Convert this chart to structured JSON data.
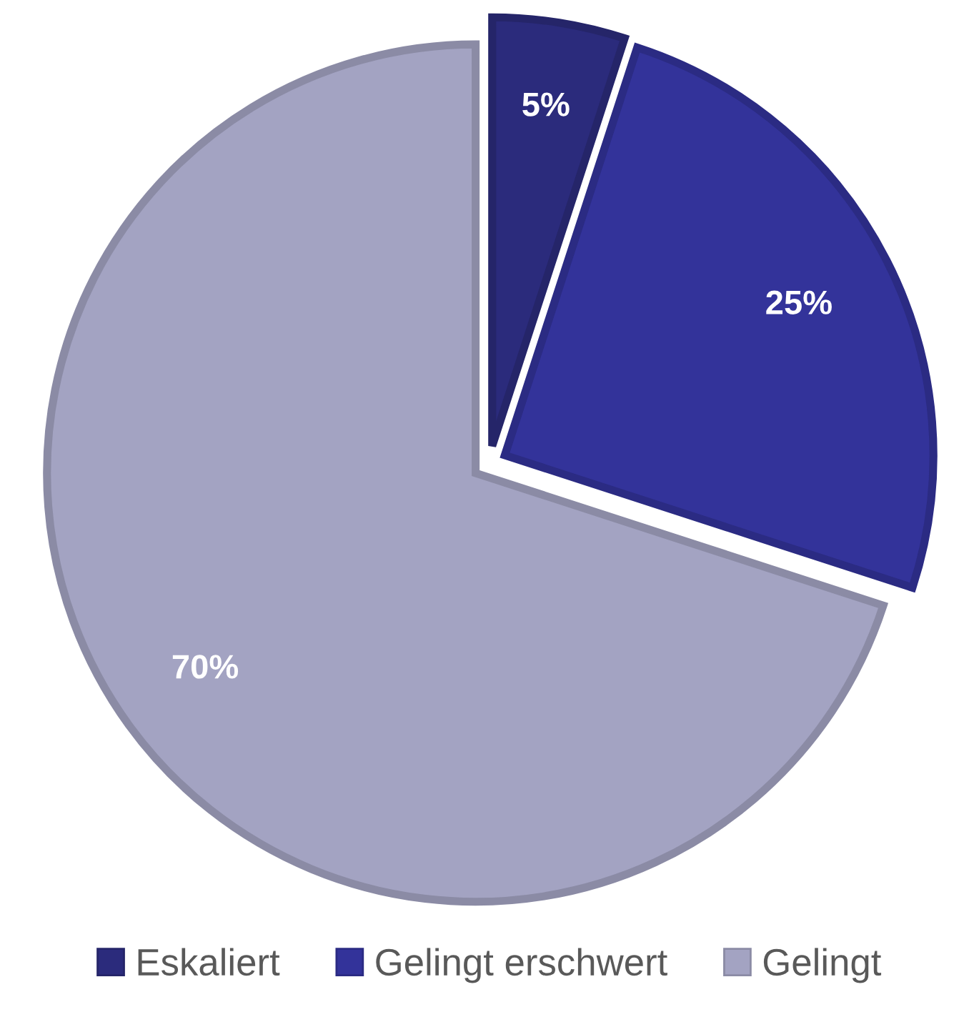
{
  "chart_data": {
    "type": "pie",
    "categories": [
      "Eskaliert",
      "Gelingt erschwert",
      "Gelingt"
    ],
    "values": [
      5,
      25,
      70
    ],
    "colors": [
      "#2b2b7c",
      "#33339a",
      "#a3a3c2"
    ],
    "value_labels": [
      "5%",
      "25%",
      "70%"
    ],
    "legend": "bottom"
  }
}
